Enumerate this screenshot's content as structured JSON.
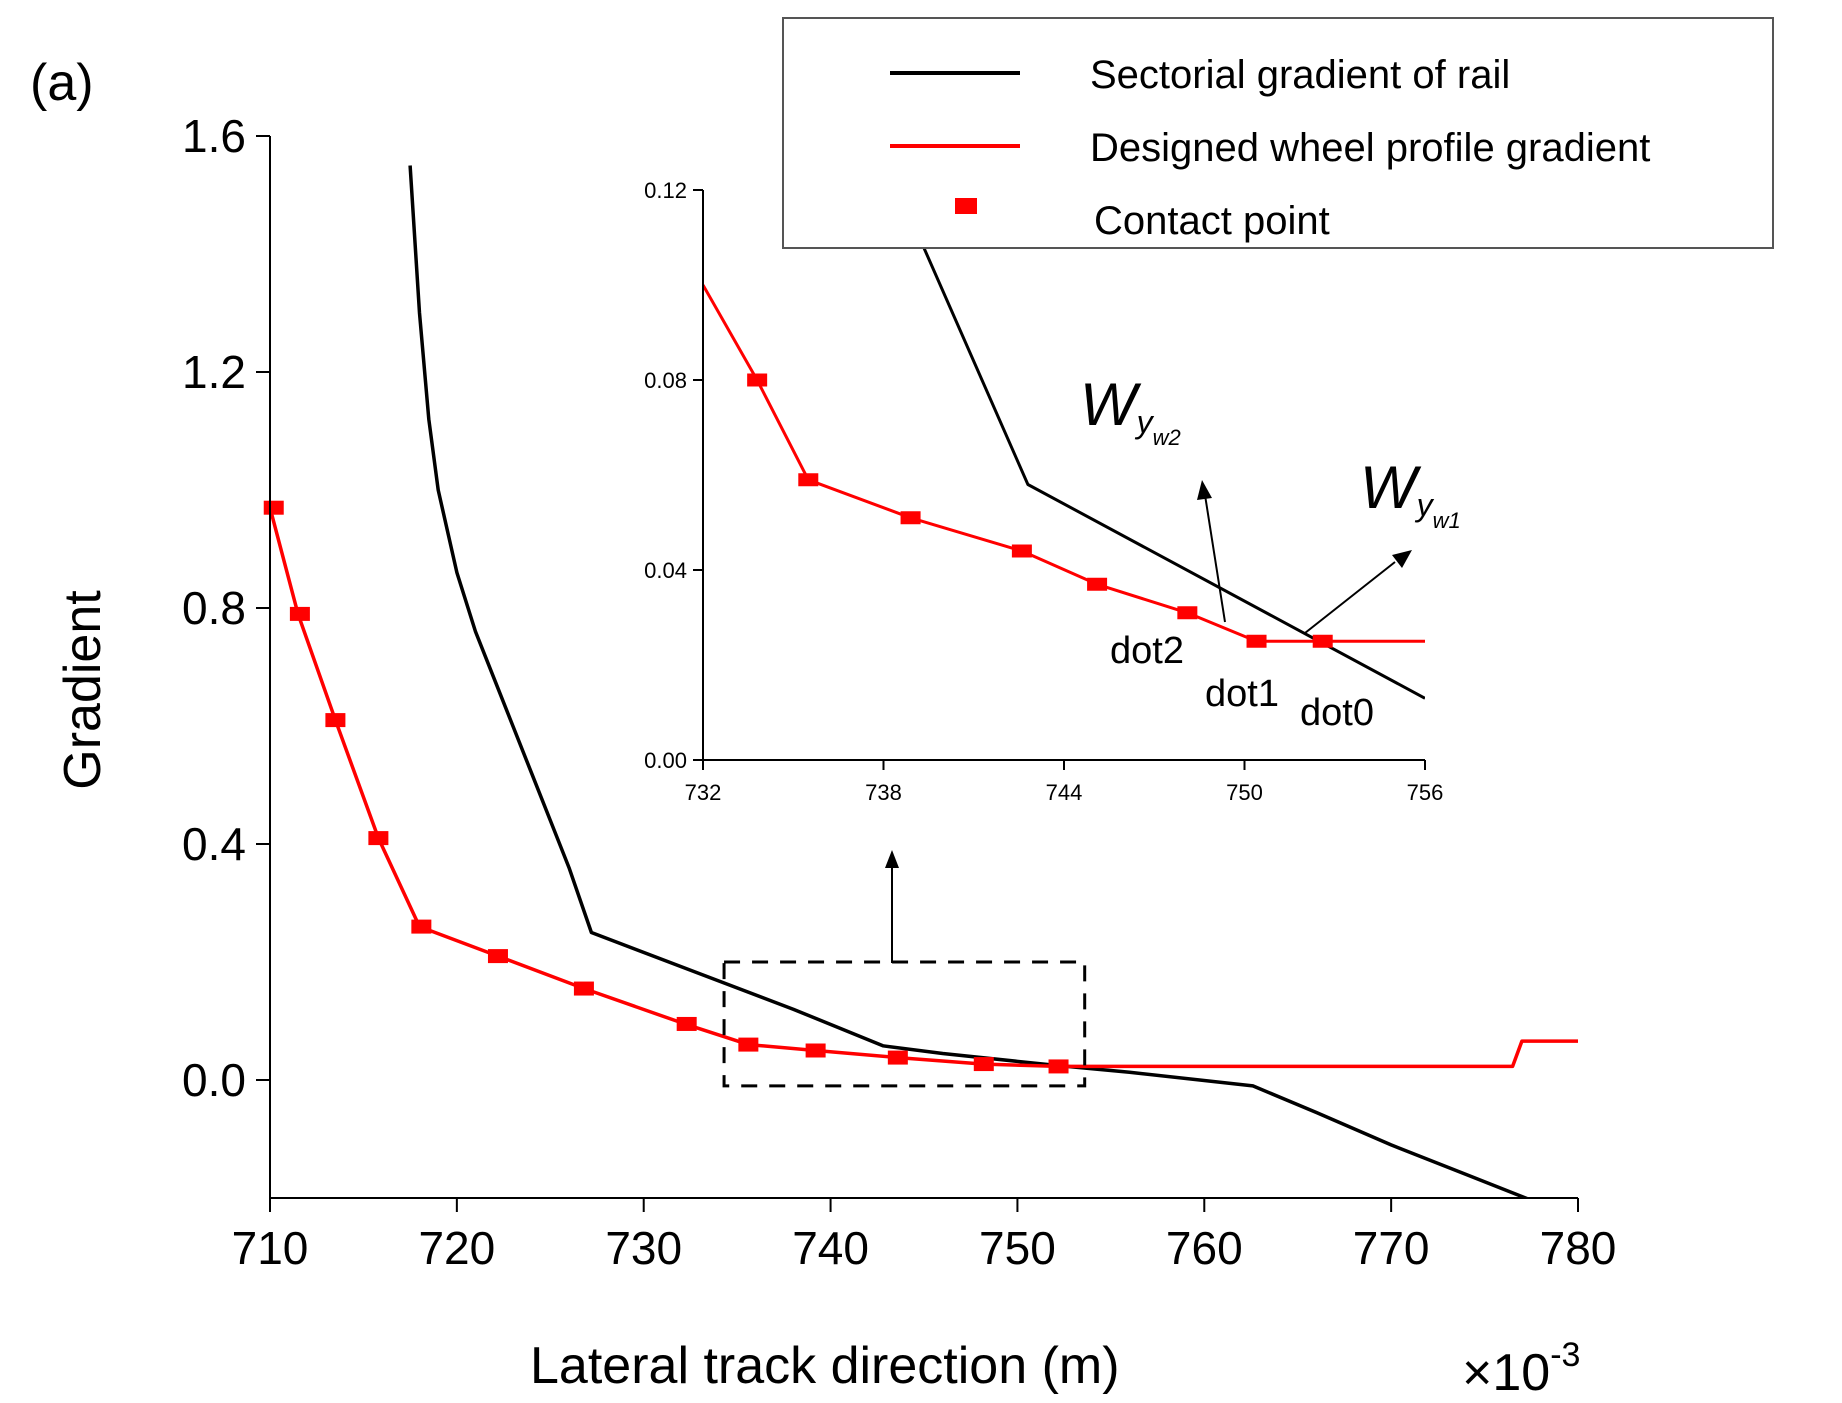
{
  "panel_label": "(a)",
  "chart_data": [
    {
      "type": "line",
      "role": "main",
      "xlabel": "Lateral track direction (m)",
      "ylabel": "Gradient",
      "x_multiplier_base": "×10",
      "x_multiplier_exp": "-3",
      "xlim": [
        710,
        780
      ],
      "ylim": [
        -0.2,
        1.6
      ],
      "xticks": [
        710,
        720,
        730,
        740,
        750,
        760,
        770,
        780
      ],
      "yticks": [
        0.0,
        0.4,
        0.8,
        1.2,
        1.6
      ],
      "xtick_labels": [
        "710",
        "720",
        "730",
        "740",
        "750",
        "760",
        "770",
        "780"
      ],
      "ytick_labels": [
        "0.0",
        "0.4",
        "0.8",
        "1.2",
        "1.6"
      ],
      "series": [
        {
          "name": "Sectorial gradient of rail",
          "color": "#000000",
          "x": [
            717.5,
            718,
            718.5,
            719,
            720,
            721,
            722,
            723,
            724,
            725,
            726,
            727.2,
            733,
            738,
            742.8,
            746,
            752,
            756,
            762.6,
            766,
            770,
            774,
            778
          ],
          "y": [
            1.55,
            1.3,
            1.12,
            1.0,
            0.86,
            0.76,
            0.68,
            0.6,
            0.52,
            0.44,
            0.36,
            0.25,
            0.18,
            0.12,
            0.058,
            0.045,
            0.025,
            0.013,
            -0.01,
            -0.055,
            -0.11,
            -0.16,
            -0.21
          ]
        },
        {
          "name": "Designed wheel profile gradient",
          "color": "#ff0000",
          "x": [
            710,
            711.5,
            713.5,
            715.8,
            718,
            722.2,
            726.8,
            732.2,
            735.6,
            739.2,
            743.6,
            748.2,
            752.2,
            776.5,
            777,
            780
          ],
          "y": [
            0.97,
            0.79,
            0.61,
            0.41,
            0.26,
            0.21,
            0.155,
            0.095,
            0.06,
            0.05,
            0.038,
            0.027,
            0.023,
            0.023,
            0.066,
            0.066
          ]
        },
        {
          "name": "Contact point",
          "color": "#ff0000",
          "marker": "square",
          "x": [
            710.2,
            711.6,
            713.5,
            715.8,
            718.1,
            722.2,
            726.8,
            732.3,
            735.6,
            739.2,
            743.6,
            748.2,
            752.2
          ],
          "y": [
            0.97,
            0.79,
            0.61,
            0.41,
            0.26,
            0.21,
            0.155,
            0.095,
            0.06,
            0.05,
            0.038,
            0.027,
            0.023
          ]
        }
      ],
      "zoom_box": {
        "x": [
          734.3,
          753.6
        ],
        "y": [
          -0.01,
          0.2
        ]
      }
    },
    {
      "type": "line",
      "role": "inset",
      "xlim": [
        732,
        756
      ],
      "ylim": [
        0.0,
        0.12
      ],
      "xticks": [
        732,
        738,
        744,
        750,
        756
      ],
      "yticks": [
        0.0,
        0.04,
        0.08,
        0.12
      ],
      "xtick_labels": [
        "732",
        "738",
        "744",
        "750",
        "756"
      ],
      "ytick_labels": [
        "0.00",
        "0.04",
        "0.08",
        "0.12"
      ],
      "series": [
        {
          "name": "Sectorial gradient of rail",
          "color": "#000000",
          "x": [
            738.5,
            742.8,
            756
          ],
          "y": [
            0.12,
            0.058,
            0.013
          ]
        },
        {
          "name": "Designed wheel profile gradient",
          "color": "#ff0000",
          "x": [
            732,
            733.8,
            735.5,
            738.9,
            742.6,
            745.1,
            748.1,
            750.4,
            752.6,
            756
          ],
          "y": [
            0.1,
            0.08,
            0.059,
            0.051,
            0.044,
            0.037,
            0.031,
            0.025,
            0.025,
            0.025
          ]
        },
        {
          "name": "Contact point",
          "color": "#ff0000",
          "marker": "square",
          "x": [
            733.8,
            735.5,
            738.9,
            742.6,
            745.1,
            748.1,
            750.4,
            752.6
          ],
          "y": [
            0.08,
            0.059,
            0.051,
            0.044,
            0.037,
            0.031,
            0.025,
            0.025
          ]
        }
      ],
      "annotations": [
        {
          "id": "dot2",
          "text": "dot2"
        },
        {
          "id": "dot1",
          "text": "dot1"
        },
        {
          "id": "dot0",
          "text": "dot0"
        }
      ],
      "w_labels": [
        {
          "id": "wyw2",
          "base": "W",
          "sub": "y",
          "subsub": "w2"
        },
        {
          "id": "wyw1",
          "base": "W",
          "sub": "y",
          "subsub": "w1"
        }
      ]
    }
  ],
  "legend": {
    "placement": "top-right",
    "entries": [
      {
        "label": "Sectorial gradient of rail",
        "color": "#000000",
        "kind": "line"
      },
      {
        "label": "Designed wheel profile gradient",
        "color": "#ff0000",
        "kind": "line"
      },
      {
        "label": "Contact point",
        "color": "#ff0000",
        "kind": "marker"
      }
    ]
  }
}
